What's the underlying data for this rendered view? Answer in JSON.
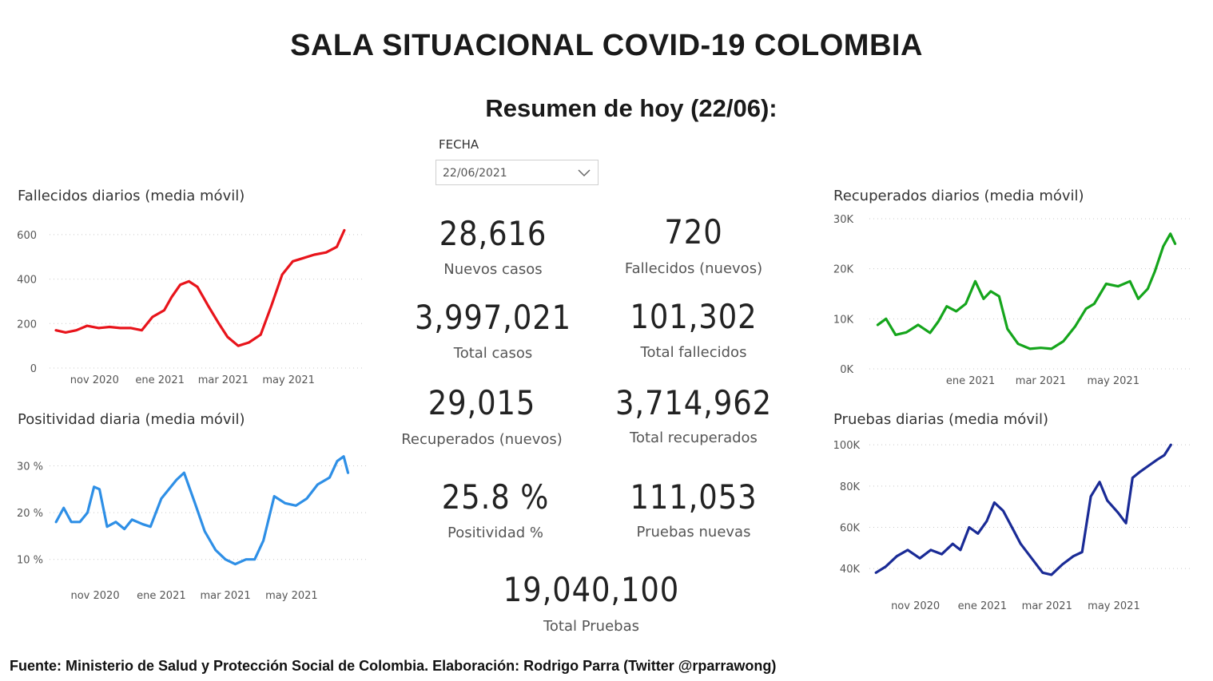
{
  "header": {
    "title": "SALA SITUACIONAL COVID-19 COLOMBIA",
    "subtitle": "Resumen de hoy (22/06):"
  },
  "filter": {
    "label": "FECHA",
    "value": "22/06/2021"
  },
  "kpis": {
    "nuevos_casos": {
      "value": "28,616",
      "label": "Nuevos casos"
    },
    "fallecidos_nuevos": {
      "value": "720",
      "label": "Fallecidos (nuevos)"
    },
    "total_casos": {
      "value": "3,997,021",
      "label": "Total casos"
    },
    "total_fallecidos": {
      "value": "101,302",
      "label": "Total fallecidos"
    },
    "recuperados_nuevos": {
      "value": "29,015",
      "label": "Recuperados (nuevos)"
    },
    "total_recuperados": {
      "value": "3,714,962",
      "label": "Total recuperados"
    },
    "positividad": {
      "value": "25.8 %",
      "label": "Positividad %"
    },
    "pruebas_nuevas": {
      "value": "111,053",
      "label": "Pruebas nuevas"
    },
    "total_pruebas": {
      "value": "19,040,100",
      "label": "Total Pruebas"
    }
  },
  "footer": {
    "text": "Fuente: Ministerio de Salud y Protección Social de Colombia. Elaboración: Rodrigo Parra (Twitter @rparrawong)"
  },
  "chart_data": [
    {
      "id": "fallecidos",
      "type": "line",
      "title": "Fallecidos diarios (media móvil)",
      "color": "#e8141b",
      "ylim": [
        0,
        650
      ],
      "yticks": [
        0,
        200,
        400,
        600
      ],
      "yticklabels": [
        "0",
        "200",
        "400",
        "600"
      ],
      "xticklabels": [
        {
          "date": "2020-11-01",
          "label": "nov 2020"
        },
        {
          "date": "2021-01-01",
          "label": "ene 2021"
        },
        {
          "date": "2021-03-01",
          "label": "mar 2021"
        },
        {
          "date": "2021-05-01",
          "label": "may 2021"
        }
      ],
      "xlim": [
        "2020-09-20",
        "2021-07-10"
      ],
      "grid": true,
      "series": [
        {
          "x": [
            "2020-09-26",
            "2020-10-05",
            "2020-10-15",
            "2020-10-25",
            "2020-11-05",
            "2020-11-15",
            "2020-11-25",
            "2020-12-05",
            "2020-12-15",
            "2020-12-25",
            "2021-01-05",
            "2021-01-12",
            "2021-01-20",
            "2021-01-28",
            "2021-02-05",
            "2021-02-15",
            "2021-02-25",
            "2021-03-05",
            "2021-03-15",
            "2021-03-25",
            "2021-04-05",
            "2021-04-15",
            "2021-04-25",
            "2021-05-05",
            "2021-05-15",
            "2021-05-25",
            "2021-06-05",
            "2021-06-15",
            "2021-06-22"
          ],
          "y": [
            170,
            160,
            170,
            190,
            180,
            185,
            180,
            180,
            170,
            230,
            260,
            320,
            375,
            390,
            365,
            280,
            200,
            140,
            100,
            115,
            150,
            280,
            420,
            480,
            495,
            510,
            520,
            545,
            620
          ]
        }
      ]
    },
    {
      "id": "positividad",
      "type": "line",
      "title": "Positividad diaria (media móvil)",
      "color": "#2e8fe6",
      "ylim": [
        5,
        34
      ],
      "yticks": [
        10,
        20,
        30
      ],
      "yticklabels": [
        "10 %",
        "20 %",
        "30 %"
      ],
      "xticklabels": [
        {
          "date": "2020-11-01",
          "label": "nov 2020"
        },
        {
          "date": "2021-01-01",
          "label": "ene 2021"
        },
        {
          "date": "2021-03-01",
          "label": "mar 2021"
        },
        {
          "date": "2021-05-01",
          "label": "may 2021"
        }
      ],
      "xlim": [
        "2020-09-20",
        "2021-07-10"
      ],
      "grid": true,
      "series": [
        {
          "x": [
            "2020-09-26",
            "2020-10-03",
            "2020-10-10",
            "2020-10-18",
            "2020-10-25",
            "2020-10-31",
            "2020-11-05",
            "2020-11-12",
            "2020-11-20",
            "2020-11-28",
            "2020-12-05",
            "2020-12-15",
            "2020-12-22",
            "2021-01-01",
            "2021-01-08",
            "2021-01-15",
            "2021-01-22",
            "2021-02-01",
            "2021-02-10",
            "2021-02-20",
            "2021-03-01",
            "2021-03-10",
            "2021-03-20",
            "2021-03-28",
            "2021-04-05",
            "2021-04-15",
            "2021-04-25",
            "2021-05-05",
            "2021-05-15",
            "2021-05-25",
            "2021-06-05",
            "2021-06-12",
            "2021-06-18",
            "2021-06-22"
          ],
          "y": [
            18,
            21,
            18,
            18,
            20,
            25.5,
            25,
            17,
            18,
            16.5,
            18.5,
            17.5,
            17,
            23,
            25,
            27,
            28.5,
            22,
            16,
            12,
            10,
            9,
            10,
            10,
            14,
            23.5,
            22,
            21.5,
            23,
            26,
            27.5,
            31,
            32,
            28.5
          ]
        }
      ]
    },
    {
      "id": "recuperados",
      "type": "line",
      "title": "Recuperados diarios (media móvil)",
      "color": "#15a51c",
      "ylim": [
        0,
        30000
      ],
      "yticks": [
        0,
        10000,
        20000,
        30000
      ],
      "yticklabels": [
        "0K",
        "10K",
        "20K",
        "30K"
      ],
      "xticklabels": [
        {
          "date": "2021-01-01",
          "label": "ene 2021"
        },
        {
          "date": "2021-03-01",
          "label": "mar 2021"
        },
        {
          "date": "2021-05-01",
          "label": "may 2021"
        }
      ],
      "xlim": [
        "2020-10-08",
        "2021-07-05"
      ],
      "grid": true,
      "series": [
        {
          "x": [
            "2020-10-15",
            "2020-10-22",
            "2020-10-30",
            "2020-11-08",
            "2020-11-18",
            "2020-11-28",
            "2020-12-05",
            "2020-12-12",
            "2020-12-20",
            "2020-12-28",
            "2021-01-05",
            "2021-01-12",
            "2021-01-18",
            "2021-01-25",
            "2021-02-01",
            "2021-02-10",
            "2021-02-20",
            "2021-03-01",
            "2021-03-10",
            "2021-03-20",
            "2021-03-30",
            "2021-04-08",
            "2021-04-15",
            "2021-04-25",
            "2021-05-05",
            "2021-05-15",
            "2021-05-22",
            "2021-05-30",
            "2021-06-05",
            "2021-06-12",
            "2021-06-18",
            "2021-06-22"
          ],
          "y": [
            8800,
            10000,
            6800,
            7300,
            8800,
            7200,
            9500,
            12500,
            11500,
            13000,
            17500,
            14000,
            15500,
            14500,
            8000,
            5000,
            4000,
            4200,
            4000,
            5500,
            8500,
            12000,
            13000,
            17000,
            16500,
            17500,
            14000,
            16000,
            19500,
            24500,
            27000,
            25000
          ]
        }
      ]
    },
    {
      "id": "pruebas",
      "type": "line",
      "title": "Pruebas diarias (media móvil)",
      "color": "#1a2b96",
      "ylim": [
        30000,
        102000
      ],
      "yticks": [
        40000,
        60000,
        80000,
        100000
      ],
      "yticklabels": [
        "40K",
        "60K",
        "80K",
        "100K"
      ],
      "xticklabels": [
        {
          "date": "2020-11-01",
          "label": "nov 2020"
        },
        {
          "date": "2021-01-01",
          "label": "ene 2021"
        },
        {
          "date": "2021-03-01",
          "label": "mar 2021"
        },
        {
          "date": "2021-05-01",
          "label": "may 2021"
        }
      ],
      "xlim": [
        "2020-09-20",
        "2021-07-10"
      ],
      "grid": true,
      "series": [
        {
          "x": [
            "2020-09-26",
            "2020-10-05",
            "2020-10-15",
            "2020-10-25",
            "2020-11-05",
            "2020-11-15",
            "2020-11-25",
            "2020-12-05",
            "2020-12-12",
            "2020-12-20",
            "2020-12-28",
            "2021-01-05",
            "2021-01-12",
            "2021-01-20",
            "2021-01-28",
            "2021-02-05",
            "2021-02-15",
            "2021-02-25",
            "2021-03-05",
            "2021-03-15",
            "2021-03-25",
            "2021-04-02",
            "2021-04-10",
            "2021-04-18",
            "2021-04-25",
            "2021-05-05",
            "2021-05-12",
            "2021-05-18",
            "2021-05-25",
            "2021-06-02",
            "2021-06-10",
            "2021-06-16",
            "2021-06-22"
          ],
          "y": [
            38000,
            41000,
            46000,
            49000,
            45000,
            49000,
            47000,
            52000,
            49000,
            60000,
            57000,
            63000,
            72000,
            68000,
            60000,
            52000,
            45000,
            38000,
            37000,
            42000,
            46000,
            48000,
            75000,
            82000,
            73000,
            67000,
            62000,
            84000,
            87000,
            90000,
            93000,
            95000,
            100000
          ]
        }
      ]
    }
  ]
}
